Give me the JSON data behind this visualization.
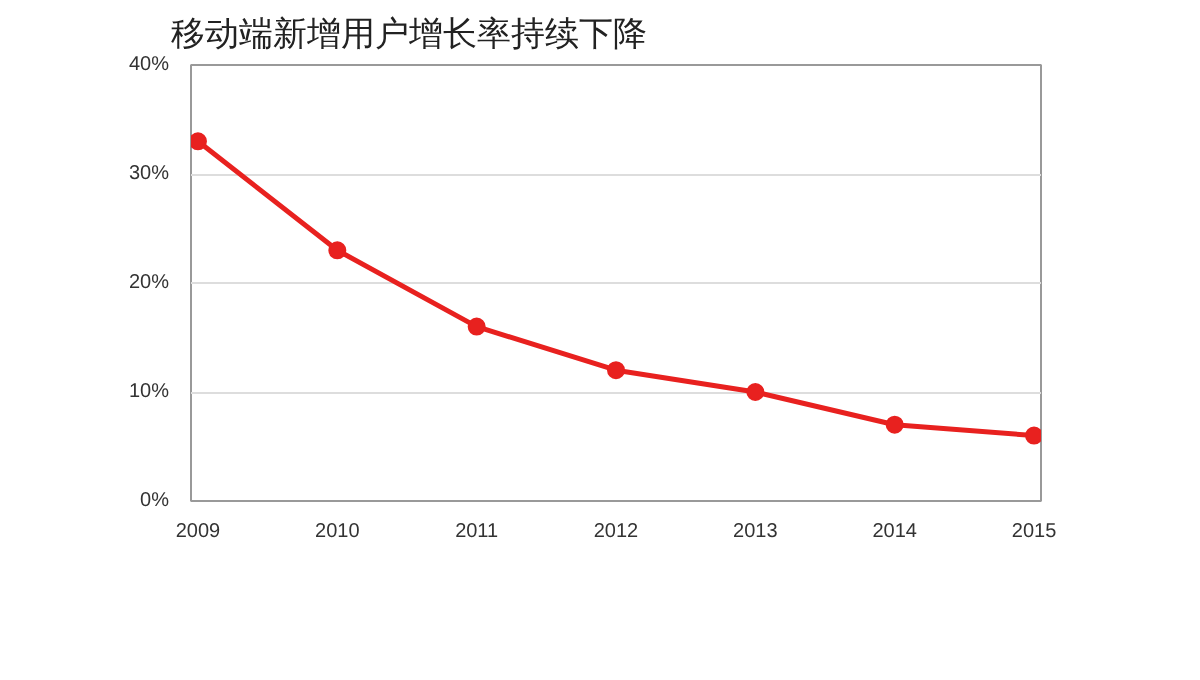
{
  "chart_data": {
    "type": "line",
    "title": "移动端新增用户增长率持续下降",
    "categories": [
      "2009",
      "2010",
      "2011",
      "2012",
      "2013",
      "2014",
      "2015"
    ],
    "series": [
      {
        "color": "#e8211f",
        "values": [
          33,
          23,
          16,
          12,
          10,
          7,
          6
        ]
      }
    ],
    "ylim": [
      0,
      40
    ],
    "yticks": [
      {
        "value": 0,
        "label": "0%"
      },
      {
        "value": 10,
        "label": "10%"
      },
      {
        "value": 20,
        "label": "20%"
      },
      {
        "value": 30,
        "label": "30%"
      },
      {
        "value": 40,
        "label": "40%"
      }
    ],
    "grid": "y",
    "marker": "circle",
    "line_style": "solid"
  }
}
